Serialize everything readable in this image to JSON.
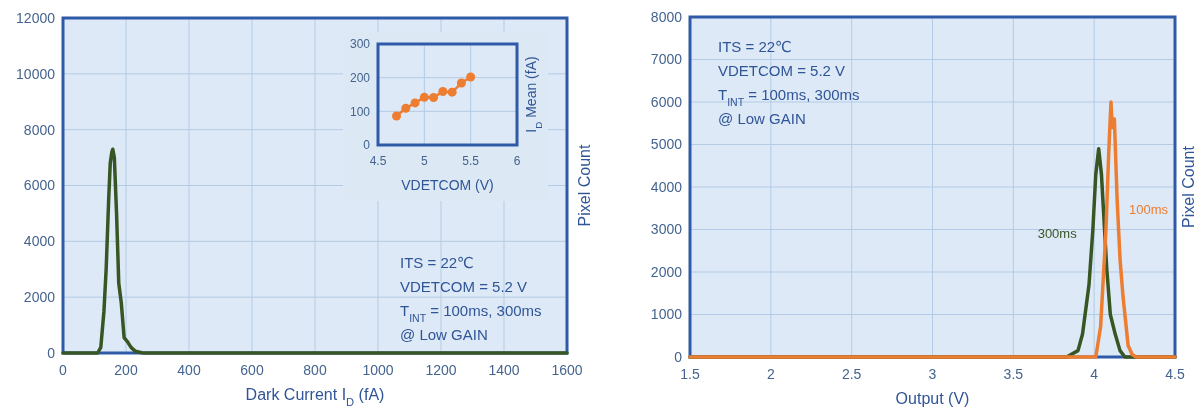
{
  "chart_data": [
    {
      "type": "line",
      "xlabel": "Dark Current I$_{D}$ (fA)",
      "ylabel": "Pixel Count",
      "xlim": [
        0,
        1600
      ],
      "xticks": [
        0,
        200,
        400,
        600,
        800,
        1000,
        1200,
        1400,
        1600
      ],
      "ylim": [
        0,
        12000
      ],
      "yticks": [
        0,
        2000,
        4000,
        6000,
        8000,
        10000,
        12000
      ],
      "grid": true,
      "series": [
        {
          "color": "#375623",
          "x": [
            0,
            110,
            120,
            130,
            137,
            145,
            150,
            155,
            158,
            163,
            170,
            177,
            185,
            194,
            205,
            216,
            230,
            250,
            260,
            1600
          ],
          "values": [
            0,
            0,
            200,
            1500,
            3000,
            5500,
            6800,
            7200,
            7300,
            7000,
            5000,
            2500,
            1800,
            550,
            400,
            200,
            60,
            10,
            0,
            0
          ]
        }
      ],
      "annotations": [
        "ITS = 22℃",
        "VDETCOM = 5.2 V",
        "T$_{INT}$ = 100ms, 300ms",
        "@ Low GAIN"
      ]
    },
    {
      "type": "line",
      "xlabel": "VDETCOM (V)",
      "ylabel": "I$_{D}$ Mean (fA)",
      "xlim": [
        4.5,
        6
      ],
      "xticks": [
        4.5,
        5,
        5.5,
        6
      ],
      "ylim": [
        0,
        300
      ],
      "yticks": [
        0,
        100,
        200,
        300
      ],
      "grid": true,
      "marker": "circle",
      "series": [
        {
          "color": "#ed7d31",
          "x": [
            4.7,
            4.8,
            4.9,
            5,
            5.1,
            5.2,
            5.3,
            5.4,
            5.5
          ],
          "values": [
            86,
            109,
            125,
            142,
            141,
            159,
            157,
            184,
            202
          ]
        }
      ]
    },
    {
      "type": "line",
      "xlabel": "Output (V)",
      "ylabel": "Pixel Count",
      "xlim": [
        1.5,
        4.5
      ],
      "xticks": [
        1.5,
        2,
        2.5,
        3,
        3.5,
        4,
        4.5
      ],
      "ylim": [
        0,
        8000
      ],
      "yticks": [
        0,
        1000,
        2000,
        3000,
        4000,
        5000,
        6000,
        7000,
        8000
      ],
      "grid": true,
      "series": [
        {
          "name": "300ms",
          "color": "#375623",
          "x": [
            1.5,
            3.83,
            3.9,
            3.928,
            3.968,
            3.992,
            4.01,
            4.028,
            4.045,
            4.078,
            4.1,
            4.13,
            4.16,
            4.19,
            4.5
          ],
          "values": [
            0,
            0,
            150,
            540,
            1700,
            3000,
            4300,
            4900,
            4300,
            2070,
            1000,
            540,
            150,
            0,
            0
          ]
        },
        {
          "name": "100ms",
          "color": "#ed7d31",
          "x": [
            1.5,
            4.01,
            4.04,
            4.073,
            4.09,
            4.104,
            4.112,
            4.125,
            4.142,
            4.16,
            4.178,
            4.21,
            4.235,
            4.26,
            4.5
          ],
          "values": [
            0,
            0,
            720,
            3000,
            4800,
            6000,
            5400,
            5600,
            3700,
            2300,
            1440,
            270,
            60,
            0,
            0
          ]
        }
      ],
      "annotations": [
        "ITS = 22℃",
        "VDETCOM = 5.2 V",
        "T$_{INT}$ = 100ms, 300ms",
        "@ Low GAIN"
      ]
    }
  ]
}
